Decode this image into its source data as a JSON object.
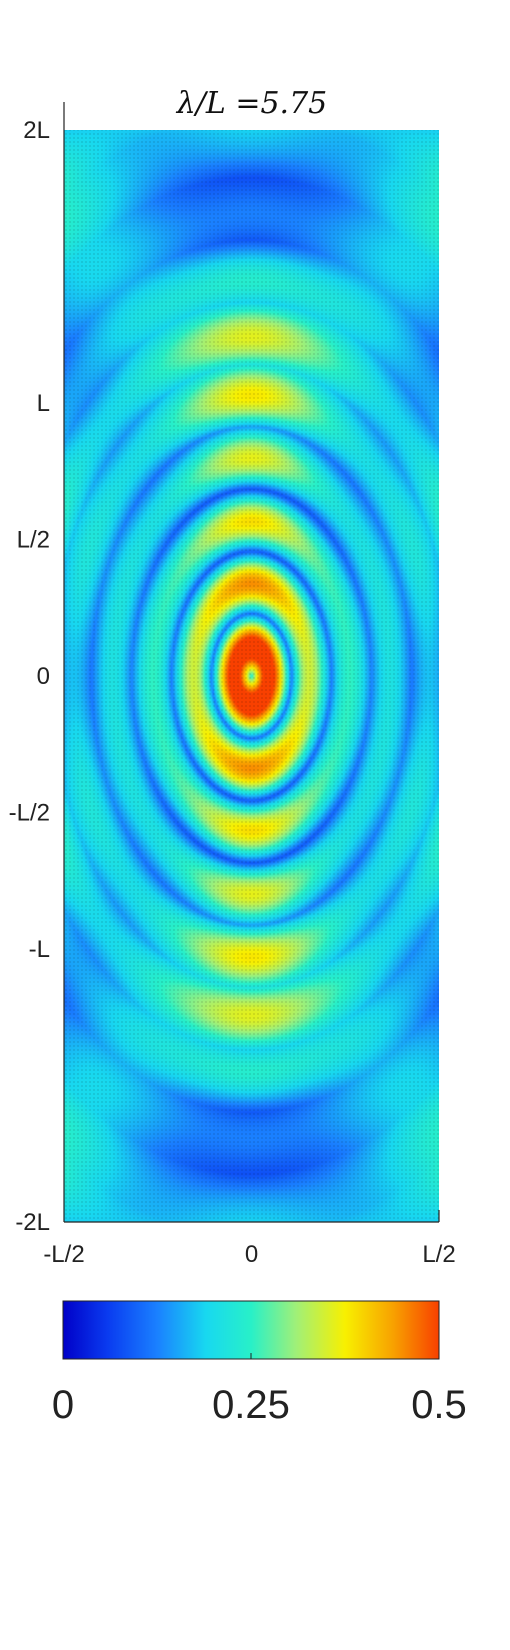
{
  "chart_data": {
    "type": "heatmap",
    "title": "λ/L =5.75",
    "xlabel": "",
    "ylabel": "",
    "x_ticks": [
      {
        "value": -0.5,
        "label": "-L/2"
      },
      {
        "value": 0,
        "label": "0"
      },
      {
        "value": 0.5,
        "label": "L/2"
      }
    ],
    "y_ticks": [
      {
        "value": 2,
        "label": "2L"
      },
      {
        "value": 1,
        "label": "L"
      },
      {
        "value": 0.5,
        "label": "L/2"
      },
      {
        "value": 0,
        "label": "0"
      },
      {
        "value": -0.5,
        "label": "-L/2"
      },
      {
        "value": -1,
        "label": "-L"
      },
      {
        "value": -2,
        "label": "-2L"
      }
    ],
    "xlim": [
      -0.5,
      0.5
    ],
    "ylim": [
      -2,
      2
    ],
    "colorbar": {
      "range": [
        0,
        0.5
      ],
      "ticks": [
        {
          "value": 0,
          "label": "0"
        },
        {
          "value": 0.25,
          "label": "0.25"
        },
        {
          "value": 0.5,
          "label": "0.5"
        }
      ],
      "colormap": "jet",
      "orientation": "horizontal",
      "placement": "bottom"
    },
    "field": {
      "description_formula": "standing wave amplitude along y with radially scattered rings",
      "wavelength": 5.75,
      "max_value": 0.5
    },
    "colors": {
      "low": "#0a3cf0",
      "mid": "#19e6d6",
      "high": "#f0c81a",
      "peak": "#ff3c00"
    }
  }
}
